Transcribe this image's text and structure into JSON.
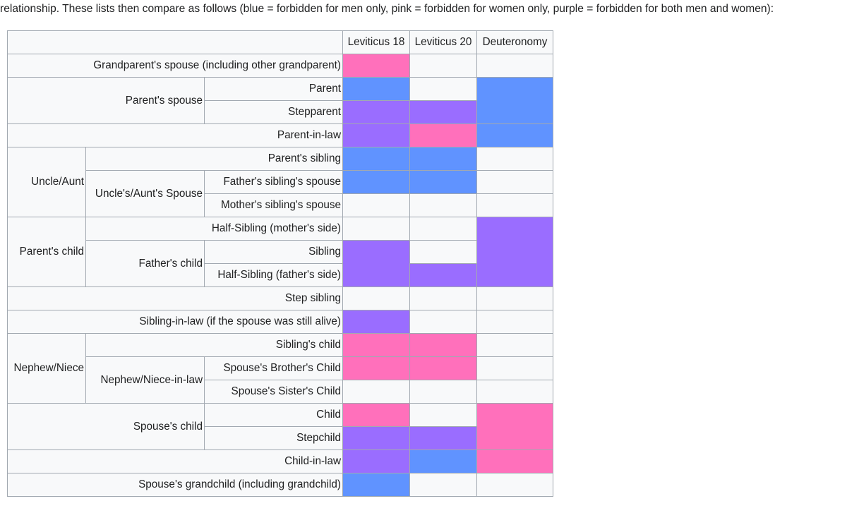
{
  "intro_text": "relationship. These lists then compare as follows (blue = forbidden for men only, pink = forbidden for women only, purple = forbidden for both men and women):",
  "colors": {
    "blue": "#6093ff",
    "pink": "#ff70bb",
    "purple": "#9a6dff",
    "none": "#f8f9fa"
  },
  "headers": [
    "Leviticus 18",
    "Leviticus 20",
    "Deuteronomy"
  ],
  "labels": {
    "grandparent_spouse": "Grandparent's spouse (including other grandparent)",
    "parent_spouse": "Parent's spouse",
    "parent": "Parent",
    "stepparent": "Stepparent",
    "parent_in_law": "Parent-in-law",
    "uncle_aunt": "Uncle/Aunt",
    "parent_sibling": "Parent's sibling",
    "uncle_aunt_spouse": "Uncle's/Aunt's Spouse",
    "father_sibling_spouse": "Father's sibling's spouse",
    "mother_sibling_spouse": "Mother's sibling's spouse",
    "parent_child": "Parent's child",
    "half_sibling_mother": "Half-Sibling (mother's side)",
    "father_child": "Father's child",
    "sibling": "Sibling",
    "half_sibling_father": "Half-Sibling (father's side)",
    "step_sibling": "Step sibling",
    "sibling_in_law": "Sibling-in-law (if the spouse was still alive)",
    "nephew_niece": "Nephew/Niece",
    "sibling_child": "Sibling's child",
    "nephew_niece_in_law": "Nephew/Niece-in-law",
    "spouse_brother_child": "Spouse's Brother's Child",
    "spouse_sister_child": "Spouse's Sister's Child",
    "spouse_child": "Spouse's child",
    "child": "Child",
    "stepchild": "Stepchild",
    "child_in_law": "Child-in-law",
    "spouse_grandchild": "Spouse's grandchild (including grandchild)"
  },
  "cells": {
    "grandparent_spouse": [
      "pink",
      "none",
      "none"
    ],
    "parent": [
      "blue",
      "none",
      "blue"
    ],
    "stepparent": [
      "purple",
      "purple"
    ],
    "parent_in_law": [
      "purple",
      "pink",
      "blue"
    ],
    "parent_sibling": [
      "blue",
      "blue",
      "none"
    ],
    "father_sibling_spouse": [
      "blue",
      "blue",
      "none"
    ],
    "mother_sibling_spouse": [
      "none",
      "none",
      "none"
    ],
    "half_sibling_mother": [
      "none",
      "none",
      "purple"
    ],
    "sibling": [
      "purple",
      "none"
    ],
    "half_sibling_father": [
      "purple"
    ],
    "step_sibling": [
      "none",
      "none",
      "none"
    ],
    "sibling_in_law": [
      "purple",
      "none",
      "none"
    ],
    "sibling_child": [
      "pink",
      "pink",
      "none"
    ],
    "spouse_brother_child": [
      "pink",
      "pink",
      "none"
    ],
    "spouse_sister_child": [
      "none",
      "none",
      "none"
    ],
    "child": [
      "pink",
      "none",
      "pink"
    ],
    "stepchild": [
      "purple",
      "purple"
    ],
    "child_in_law": [
      "purple",
      "blue",
      "pink"
    ],
    "spouse_grandchild": [
      "blue",
      "none",
      "none"
    ]
  }
}
